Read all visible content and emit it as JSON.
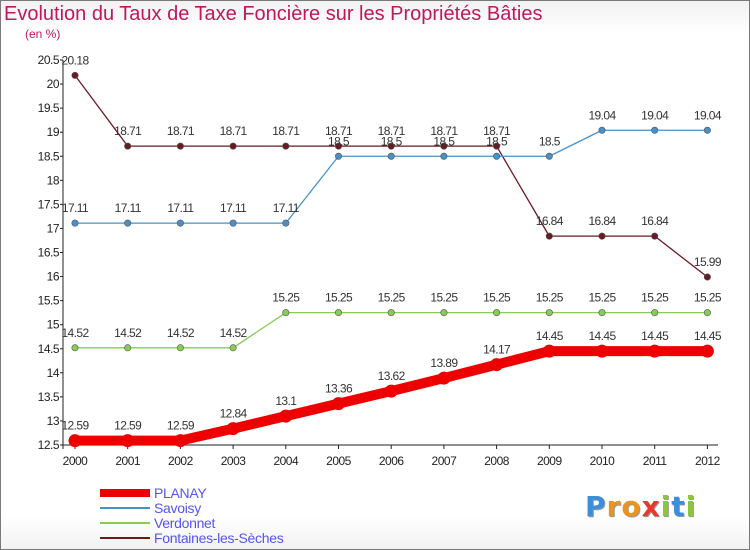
{
  "title": "Evolution du Taux de Taxe Foncière sur les Propriétés Bâties",
  "unit_label": "(en %)",
  "logo": {
    "letters": [
      "P",
      "r",
      "o",
      "x",
      "i",
      "t",
      "i"
    ],
    "colors": [
      "#3b8ed8",
      "#e8941e",
      "#e8941e",
      "#e83a2a",
      "#8cc63f",
      "#3b8ed8",
      "#8cc63f"
    ]
  },
  "chart_data": {
    "type": "line",
    "title": "Evolution du Taux de Taxe Foncière sur les Propriétés Bâties",
    "ylabel": "(en %)",
    "xlabel": "",
    "ylim": [
      12.5,
      20.5
    ],
    "y_ticks": [
      12.5,
      13,
      13.5,
      14,
      14.5,
      15,
      15.5,
      16,
      16.5,
      17,
      17.5,
      18,
      18.5,
      19,
      19.5,
      20,
      20.5
    ],
    "y_tick_labels": [
      "12.5",
      "13",
      "13.5",
      "14",
      "14.5",
      "15",
      "15.5",
      "16",
      "16.5",
      "17",
      "17.5",
      "18",
      "18.5",
      "19",
      "19.5",
      "20",
      "20.5"
    ],
    "categories": [
      "2000",
      "2001",
      "2002",
      "2003",
      "2004",
      "2005",
      "2006",
      "2007",
      "2008",
      "2009",
      "2010",
      "2011",
      "2012"
    ],
    "series": [
      {
        "name": "PLANAY",
        "color": "#ee0000",
        "values": [
          12.59,
          12.59,
          12.59,
          12.84,
          13.1,
          13.36,
          13.62,
          13.89,
          14.17,
          14.45,
          14.45,
          14.45,
          14.45
        ]
      },
      {
        "name": "Savoisy",
        "color": "#4a90c8",
        "values": [
          17.11,
          17.11,
          17.11,
          17.11,
          17.11,
          18.5,
          18.5,
          18.5,
          18.5,
          18.5,
          19.04,
          19.04,
          19.04
        ]
      },
      {
        "name": "Verdonnet",
        "color": "#88cc55",
        "values": [
          14.52,
          14.52,
          14.52,
          14.52,
          15.25,
          15.25,
          15.25,
          15.25,
          15.25,
          15.25,
          15.25,
          15.25,
          15.25
        ]
      },
      {
        "name": "Fontaines-les-Sèches",
        "color": "#6a1a22",
        "values": [
          20.18,
          18.71,
          18.71,
          18.71,
          18.71,
          18.71,
          18.71,
          18.71,
          18.71,
          16.84,
          16.84,
          16.84,
          15.99
        ]
      }
    ],
    "legend_position": "bottom-left"
  }
}
